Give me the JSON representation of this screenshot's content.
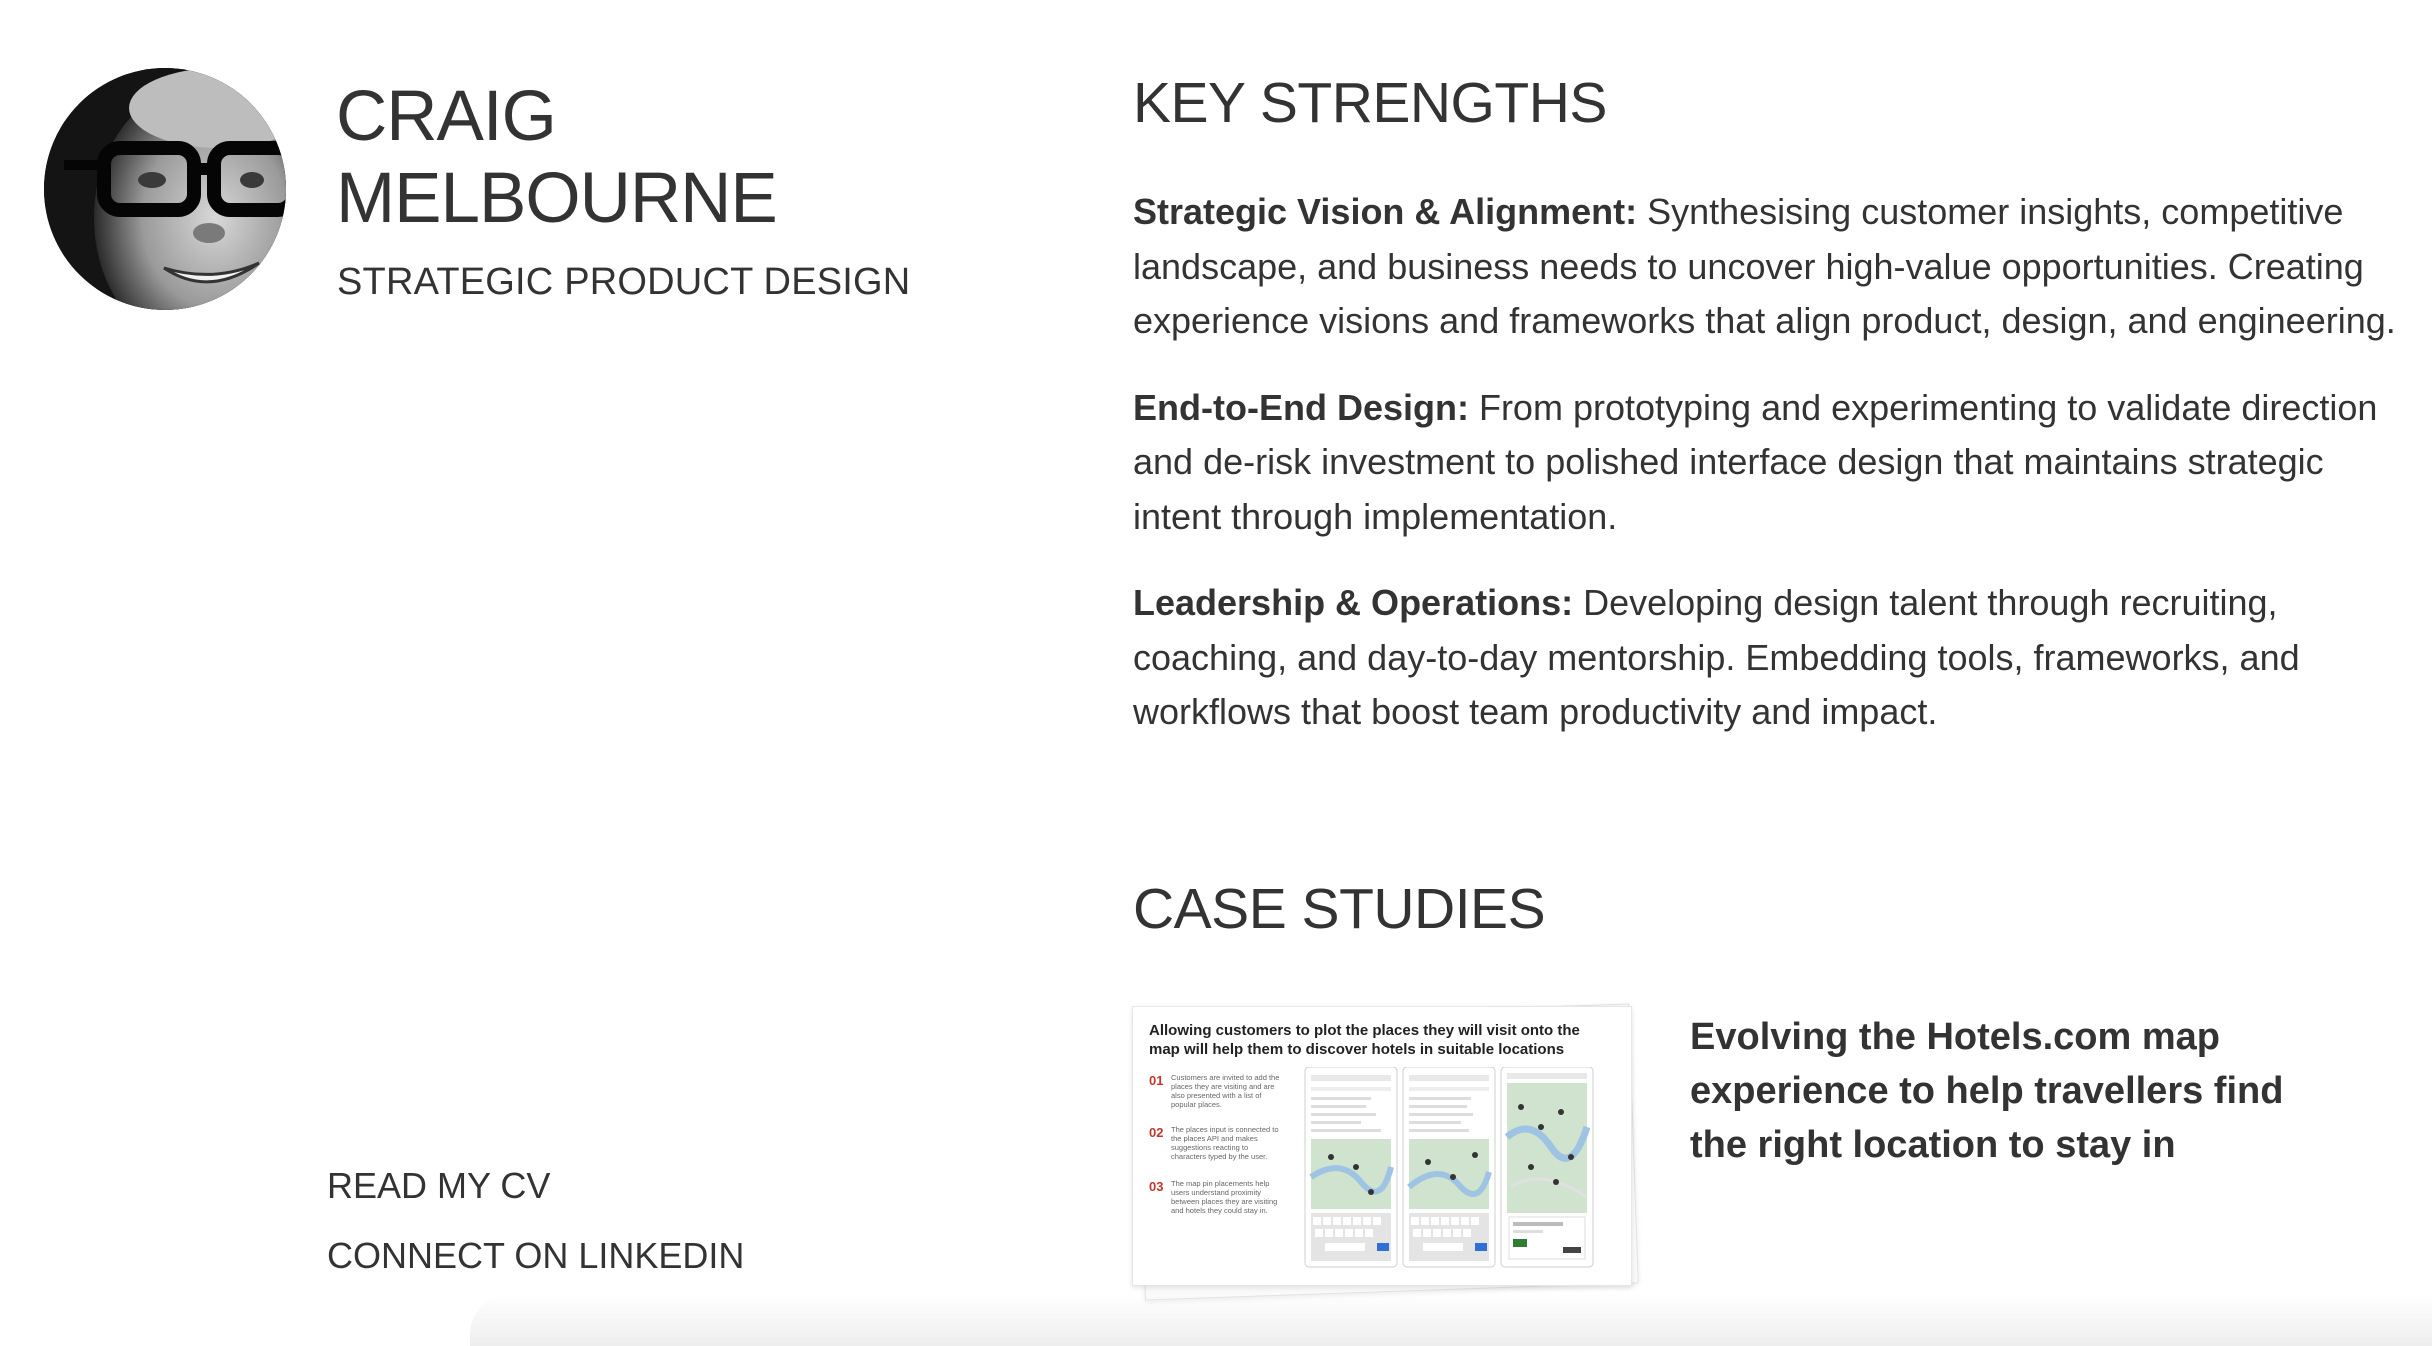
{
  "profile": {
    "name": "CRAIG MELBOURNE",
    "subtitle": "STRATEGIC PRODUCT DESIGN",
    "avatar_alt": "Portrait photo"
  },
  "links": {
    "cv": "READ MY CV",
    "linkedin": "CONNECT ON LINKEDIN"
  },
  "strengths": {
    "heading": "KEY STRENGTHS",
    "items": [
      {
        "title": "Strategic Vision & Alignment:",
        "text": " Synthesising customer insights, competitive landscape, and business needs to uncover high-value opportunities. Creating experience visions and frameworks that align product, design, and engineering."
      },
      {
        "title": "End-to-End Design:",
        "text": " From prototyping and experimenting to validate direction and de-risk investment to polished interface design that maintains strategic intent through implementation."
      },
      {
        "title": "Leadership & Operations:",
        "text": " Developing design talent through recruiting, coaching, and day-to-day mentorship. Embedding tools, frameworks, and workflows that boost team productivity and impact."
      }
    ]
  },
  "case_studies": {
    "heading": "CASE STUDIES",
    "items": [
      {
        "caption": "Evolving the Hotels.com map experience to help travellers find the right location to stay in",
        "thumbnail": {
          "title": "Allowing customers to plot the places they will visit onto the map will help them to discover hotels in suitable locations",
          "steps": [
            {
              "num": "01",
              "text": "Customers are invited to add the places they are visiting and are also presented with a list of popular places."
            },
            {
              "num": "02",
              "text": "The places input is connected to the places API and makes suggestions reacting to characters typed by the user."
            },
            {
              "num": "03",
              "text": "The map pin placements help users understand proximity between places they are visiting and hotels they could stay in."
            }
          ]
        }
      }
    ]
  },
  "colors": {
    "text": "#333333",
    "accent_red": "#c0392b",
    "background": "#ffffff"
  }
}
